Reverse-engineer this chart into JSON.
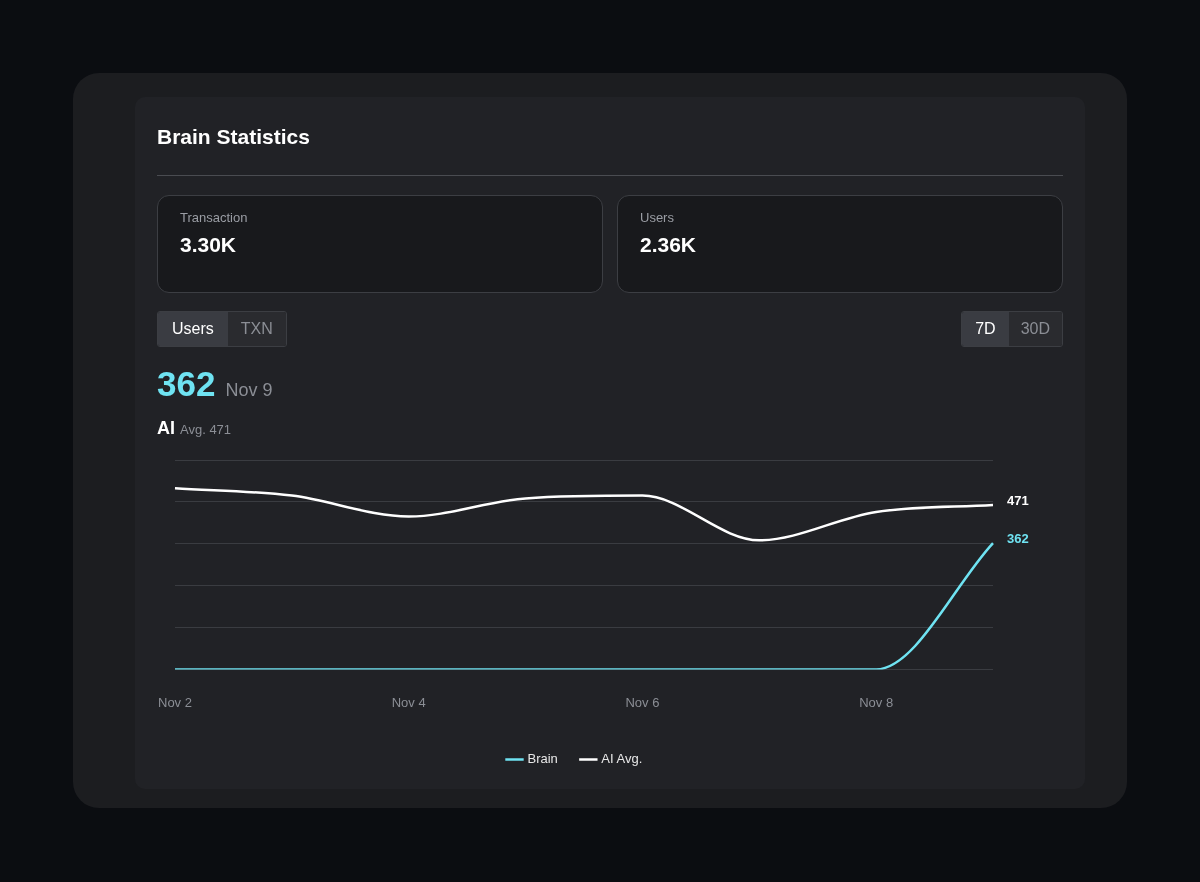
{
  "chart_data": {
    "type": "line",
    "title": "Brain Statistics",
    "annotations": [
      "Transaction",
      "3.30K",
      "Users",
      "2.36K",
      "Users",
      "TXN",
      "7D",
      "30D",
      "362",
      "Nov 9",
      "AI",
      "Avg. 471"
    ],
    "categories": [
      "Nov 2",
      null,
      "Nov 4",
      null,
      "Nov 6",
      null,
      "Nov 8",
      null
    ],
    "series": [
      {
        "name": "Brain",
        "color": "#6fe3f2",
        "values": [
          0,
          0,
          0,
          0,
          0,
          0,
          0,
          362
        ],
        "value_labels": [
          null,
          null,
          null,
          null,
          null,
          null,
          null,
          "362"
        ]
      },
      {
        "name": "AI Avg.",
        "color": "#ffffff",
        "values": [
          519,
          498,
          438,
          490,
          498,
          370,
          451,
          471
        ],
        "value_labels": [
          null,
          null,
          null,
          null,
          null,
          null,
          null,
          "471"
        ]
      }
    ],
    "ylim": [
      0,
      600
    ],
    "yticks": [
      {
        "value": 0,
        "label": null
      },
      {
        "value": 120,
        "label": null
      },
      {
        "value": 240,
        "label": null
      },
      {
        "value": 360,
        "label": null
      },
      {
        "value": 480,
        "label": null
      },
      {
        "value": 600,
        "label": null
      }
    ],
    "tick_labels": "x",
    "grid": "y",
    "legend": "bottom",
    "marker": "none",
    "line_style": "solid"
  }
}
